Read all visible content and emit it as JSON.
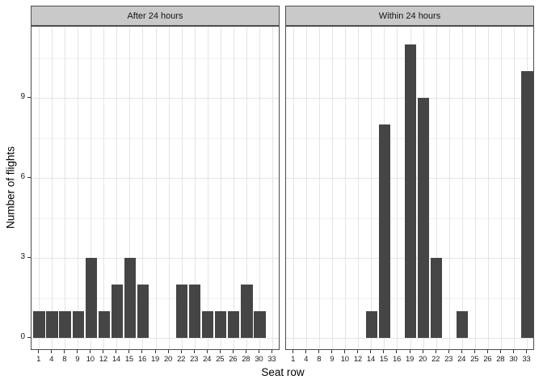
{
  "chart_data": {
    "type": "bar",
    "title": "",
    "xlabel": "Seat row",
    "ylabel": "Number of flights",
    "categories": [
      "1",
      "4",
      "8",
      "9",
      "10",
      "12",
      "14",
      "15",
      "16",
      "19",
      "20",
      "22",
      "23",
      "24",
      "25",
      "26",
      "28",
      "30",
      "33"
    ],
    "facets": [
      {
        "label": "After 24 hours",
        "values": [
          1,
          1,
          1,
          1,
          3,
          1,
          2,
          3,
          2,
          0,
          0,
          2,
          2,
          1,
          1,
          1,
          2,
          1,
          0
        ]
      },
      {
        "label": "Within 24 hours",
        "values": [
          0,
          0,
          0,
          0,
          0,
          0,
          1,
          8,
          0,
          11,
          9,
          3,
          0,
          1,
          0,
          0,
          0,
          0,
          10
        ]
      }
    ],
    "y_major_ticks": [
      0,
      3,
      6,
      9
    ],
    "y_minor_gridlines": [
      1.5,
      4.5,
      7.5,
      10.5
    ],
    "ylim": [
      -0.55,
      11.55
    ],
    "grid": true,
    "legend": "none",
    "colors": {
      "bar": "#454545",
      "strip_bg": "#C9C9C9",
      "panel_border": "#4D4D4D",
      "grid_major": "#E4E4E4",
      "grid_minor": "#F1F1F1",
      "axis_text": "#1A1A1A",
      "tick_mark": "#333333"
    }
  }
}
